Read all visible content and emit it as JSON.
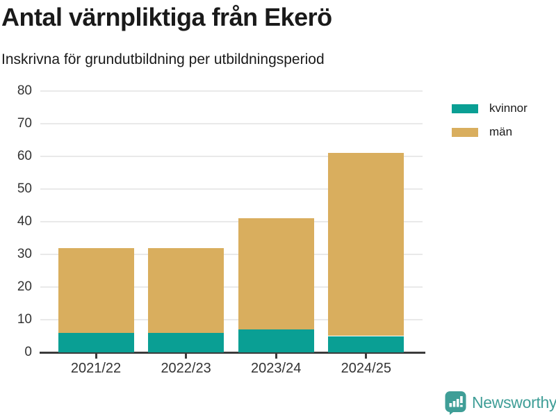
{
  "title": "Antal värnpliktiga från Ekerö",
  "subtitle": "Inskrivna för grundutbildning per utbildningsperiod",
  "legend": {
    "items": [
      {
        "label": "kvinnor",
        "color": "#0a9f94"
      },
      {
        "label": "män",
        "color": "#d9ae5e"
      }
    ]
  },
  "footer": {
    "brand": "Newsworthy"
  },
  "colors": {
    "teal": "#0a9f94",
    "tan": "#d9ae5e",
    "grid": "#e9e9e9",
    "axis": "#3b3b3b",
    "tick_text": "#333333",
    "logo": "#3f9e97"
  },
  "chart_data": {
    "type": "bar",
    "stacked": true,
    "title": "Antal värnpliktiga från Ekerö",
    "subtitle": "Inskrivna för grundutbildning per utbildningsperiod",
    "categories": [
      "2021/22",
      "2022/23",
      "2023/24",
      "2024/25"
    ],
    "series": [
      {
        "name": "kvinnor",
        "color": "#0a9f94",
        "values": [
          6,
          6,
          7,
          5
        ]
      },
      {
        "name": "män",
        "color": "#d9ae5e",
        "values": [
          26,
          26,
          34,
          56
        ]
      }
    ],
    "stack_totals": [
      32,
      32,
      41,
      61
    ],
    "xlabel": "",
    "ylabel": "",
    "ylim": [
      0,
      80
    ],
    "yticks": [
      0,
      10,
      20,
      30,
      40,
      50,
      60,
      70,
      80
    ],
    "grid": true,
    "legend_position": "upper-right-outside"
  }
}
